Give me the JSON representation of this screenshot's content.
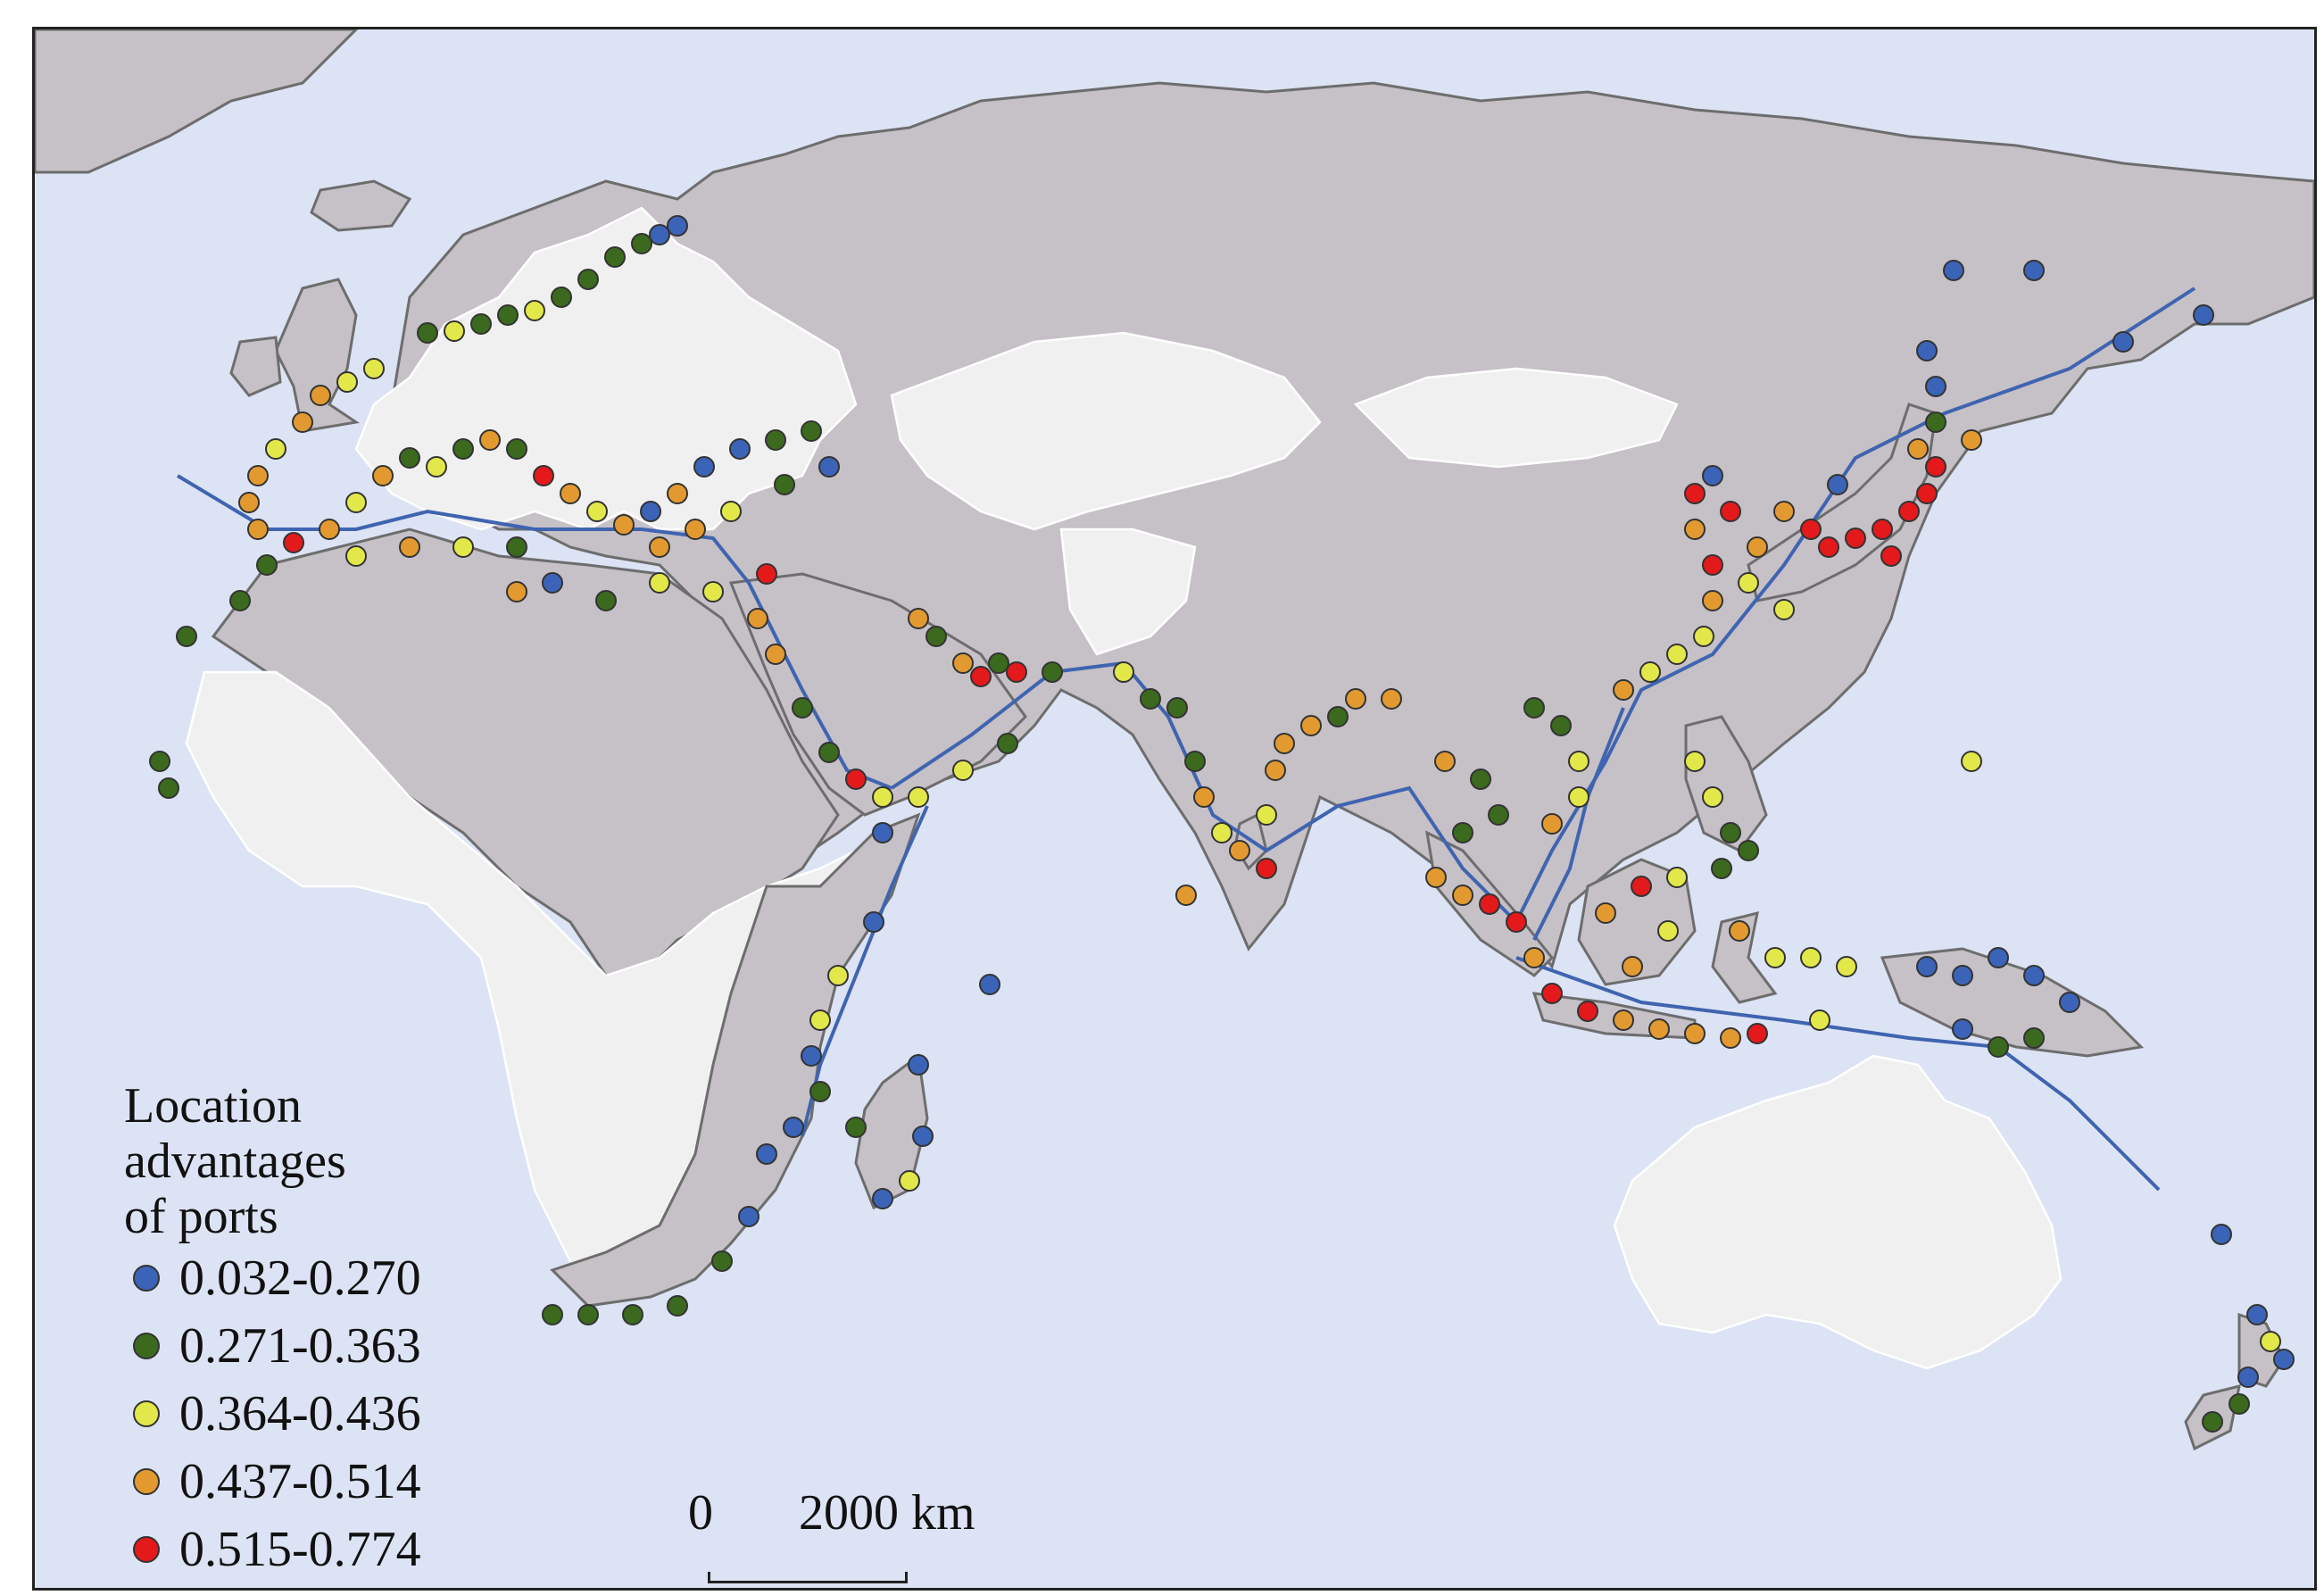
{
  "legend": {
    "title_lines": [
      "Location",
      "advantages",
      "of ports"
    ],
    "classes": [
      {
        "label": "0.032-0.270",
        "color": "#3b64b8"
      },
      {
        "label": "0.271-0.363",
        "color": "#3b6a1e"
      },
      {
        "label": "0.364-0.436",
        "color": "#e3e84a"
      },
      {
        "label": "0.437-0.514",
        "color": "#e29a30"
      },
      {
        "label": "0.515-0.774",
        "color": "#e3191c"
      }
    ]
  },
  "scale_bar": {
    "start_label": "0",
    "end_label": "2000 km"
  },
  "colors": {
    "ocean": "#dce3f4",
    "land_grey": "#c6c0c7",
    "land_white": "#f0f0f0",
    "route": "#3f64b0"
  }
}
